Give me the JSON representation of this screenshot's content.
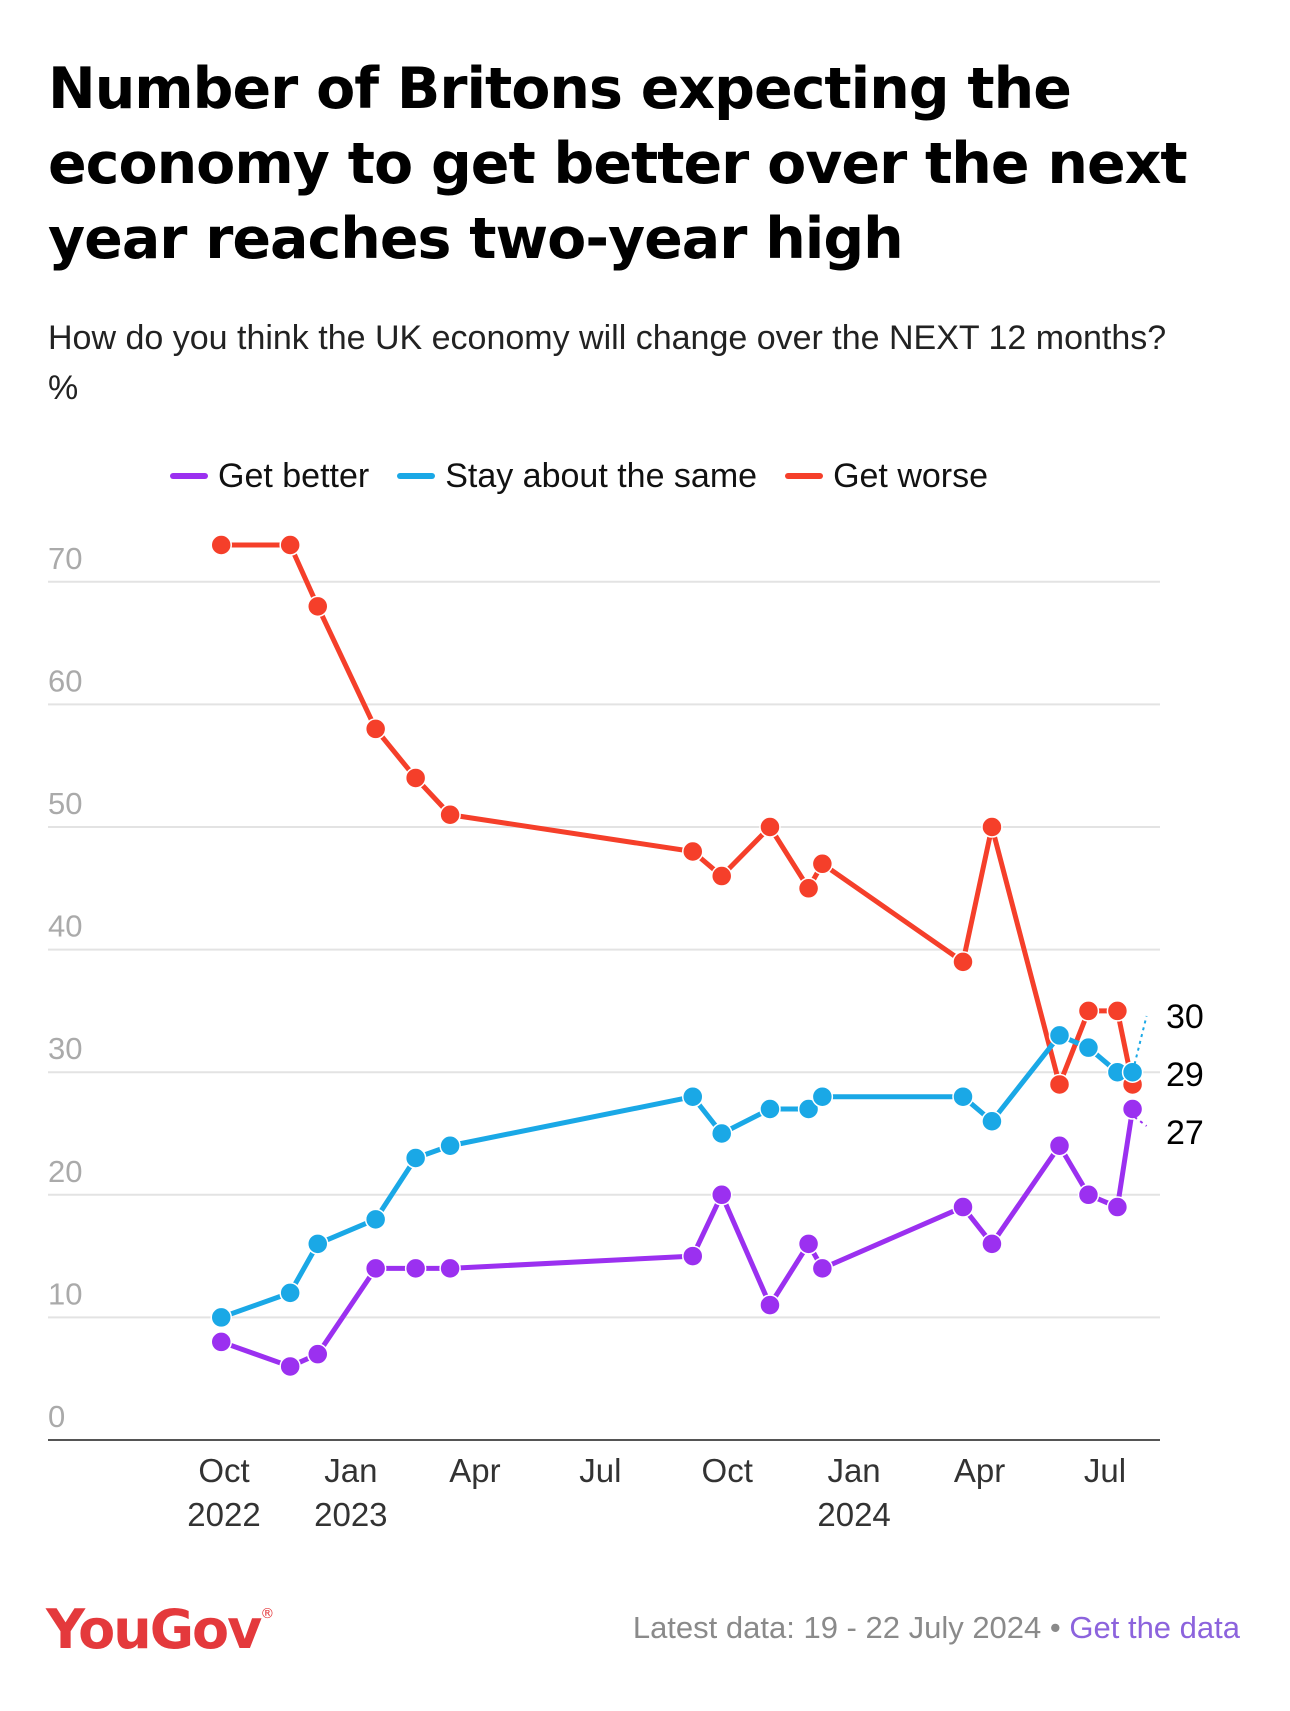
{
  "title": "Number of Britons expecting the economy to get better over the next year reaches two-year high",
  "subtitle": "How do you think the UK economy will change over the NEXT 12 months? %",
  "footer": {
    "logo": "YouGov",
    "logo_mark": "®",
    "latest_data": "Latest data: 19 - 22 July 2024",
    "separator": " • ",
    "get_data_link": "Get the data"
  },
  "colors": {
    "better": "#9b30f0",
    "same": "#1aa8e6",
    "worse": "#f53f2a",
    "grid": "#e3e3e3",
    "axis": "#555555",
    "tick": "#aaaaaa"
  },
  "chart_data": {
    "type": "line",
    "legend_position": "top",
    "grid": true,
    "ylim": [
      0,
      70
    ],
    "yticks": [
      0,
      10,
      20,
      30,
      40,
      50,
      60,
      70
    ],
    "xticks": [
      {
        "date": "2022-10-01",
        "label": [
          "Oct",
          "2022"
        ]
      },
      {
        "date": "2023-01-01",
        "label": [
          "Jan",
          "2023"
        ]
      },
      {
        "date": "2023-04-01",
        "label": [
          "Apr"
        ]
      },
      {
        "date": "2023-07-01",
        "label": [
          "Jul"
        ]
      },
      {
        "date": "2023-10-01",
        "label": [
          "Oct"
        ]
      },
      {
        "date": "2024-01-01",
        "label": [
          "Jan",
          "2024"
        ]
      },
      {
        "date": "2024-04-01",
        "label": [
          "Apr"
        ]
      },
      {
        "date": "2024-07-01",
        "label": [
          "Jul"
        ]
      }
    ],
    "x": [
      "2022-09-29",
      "2022-11-18",
      "2022-12-08",
      "2023-01-19",
      "2023-02-17",
      "2023-03-14",
      "2023-09-06",
      "2023-09-27",
      "2023-11-01",
      "2023-11-29",
      "2023-12-09",
      "2024-03-20",
      "2024-04-10",
      "2024-05-29",
      "2024-06-19",
      "2024-07-10",
      "2024-07-21"
    ],
    "series": [
      {
        "name": "Get better",
        "key": "better",
        "values": [
          8,
          6,
          7,
          14,
          14,
          14,
          15,
          20,
          11,
          16,
          14,
          19,
          16,
          24,
          20,
          19,
          27
        ],
        "end_label": "27"
      },
      {
        "name": "Stay about the same",
        "key": "same",
        "values": [
          10,
          12,
          16,
          18,
          23,
          24,
          28,
          25,
          27,
          27,
          28,
          28,
          26,
          33,
          32,
          30,
          30
        ],
        "end_label": "30"
      },
      {
        "name": "Get worse",
        "key": "worse",
        "values": [
          73,
          73,
          68,
          58,
          54,
          51,
          48,
          46,
          50,
          45,
          47,
          39,
          50,
          29,
          35,
          35,
          29
        ],
        "end_label": "29"
      }
    ]
  }
}
